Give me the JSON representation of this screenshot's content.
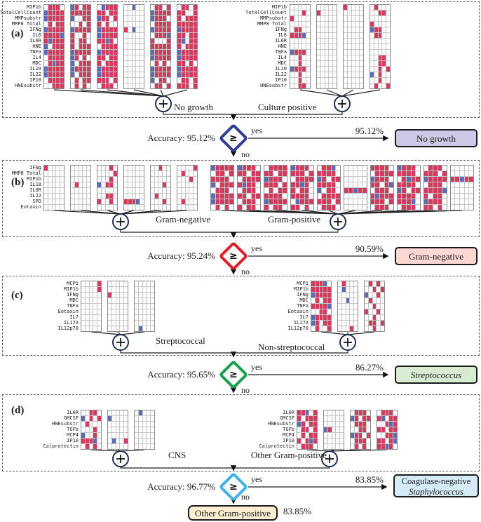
{
  "figure": {
    "labels": {
      "yes": "yes",
      "no": "no",
      "operator": "≥"
    },
    "colors": {
      "cell_positive_red": "#d23a5e",
      "cell_negative_blue": "#5b6cb4",
      "diamond_1": "#2f3d94",
      "diamond_2": "#de2026",
      "diamond_3": "#18a04f",
      "diamond_4": "#3fb3e3",
      "box_no_growth": "#ccc9e6",
      "box_gram_negative": "#fbd8d4",
      "box_streptococcus": "#d7ecd1",
      "box_coag_neg_staph": "#d5ecf7",
      "box_other_gram_positive": "#fbeed3"
    },
    "panels": [
      {
        "letter": "(a)",
        "rows": [
          "MIP1b",
          "TotalCellCount",
          "MMPsubstr",
          "MMP8 Total",
          "IFNg",
          "IL6",
          "IL6R",
          "HNE",
          "TNFa",
          "IL4",
          "MDC",
          "IL10",
          "IL22",
          "IP10",
          "HNEsubstr"
        ],
        "groups": [
          {
            "caption": "No growth",
            "blocks": [
              [
                "wrrrw",
                "brrrr",
                "brrrr",
                "wrwrr",
                "brrrr",
                "rrrrb",
                "rbrrr",
                "bwrrr",
                "brrrr",
                "wrrrr",
                "wrbrr",
                "brrrr",
                "brrrr",
                "wrrrr",
                "wwrrr"
              ],
              [
                "brwrr",
                "rrrrr",
                "bwwrr",
                "wwrwr",
                "brrrr",
                "rwwrw",
                "rwrrw",
                "rwrrr",
                "brrrr",
                "brwrw",
                "bwrrr",
                "brrrr",
                "bwrrr",
                "wrwrr",
                "wrwrw"
              ],
              [
                "wbrrr",
                "rrwrr",
                "brrwr",
                "rwrww",
                "brrrr",
                "brrrr",
                "rrbrw",
                "wrrrr",
                "brrrr",
                "rrwrr",
                "rwrrr",
                "brrrr",
                "brrrr",
                "rrrwr",
                "wrrrw"
              ],
              [
                "wwbww",
                "wwwww",
                "wwwww",
                "wwwww",
                "rwbww",
                "wwwww",
                "wwwww",
                "wwwww",
                "wwwww",
                "wwwww",
                "wwwww",
                "wwwww",
                "wwwww",
                "wwwww",
                "wwwww"
              ],
              [
                "wrrwr",
                "brrrr",
                "brrrw",
                "wrrrr",
                "brrrr",
                "wrrrb",
                "rwwwr",
                "rrrrr",
                "brrrr",
                "brrrr",
                "wrwrw",
                "brrrr",
                "brrrr",
                "bwrrw",
                "wrrwr"
              ],
              [
                "wrrwr",
                "rrwwr",
                "rwrrr",
                "rrrrr",
                "brrrr",
                "rrwrr",
                "rbwrr",
                "rwrrr",
                "brrrr",
                "brrrr",
                "rrwrw",
                "brrrr",
                "brrrr",
                "wrrwr",
                "rrrwr"
              ]
            ]
          },
          {
            "caption": "Culture positive",
            "blocks": [
              [
                "wwwww",
                "wwwrw",
                "rwwww",
                "wwwww",
                "wrrww",
                "rrrbw",
                "wwwww",
                "wwwww",
                "brrrw",
                "wwrww",
                "wwrww",
                "brrrw",
                "wwrww",
                "wwrww",
                "wwrrw"
              ],
              [
                "wwwww",
                "rwwww",
                "wwwww",
                "wwwww",
                "wwwww",
                "wwwww",
                "wwwww",
                "wwwww",
                "wwwww",
                "wwwww",
                "wwwww",
                "wwwww",
                "wwwww",
                "wwwww",
                "wwwww"
              ],
              [
                "rwwww",
                "wwwww",
                "wwwww",
                "wwwww",
                "wwwww",
                "wwwww",
                "wwwww",
                "wwwww",
                "wwwww",
                "wwwww",
                "wwwww",
                "wwwww",
                "wwwww",
                "wwwww",
                "wwwww"
              ],
              [
                "wrwww",
                "wwrrw",
                "wwwww",
                "rwwww",
                "brrww",
                "wrrww",
                "wwwww",
                "wwwww",
                "wwwww",
                "wwrrw",
                "wwrrw",
                "wwrwr",
                "bwrww",
                "wwrww",
                "wrwwr"
              ]
            ]
          }
        ]
      },
      {
        "letter": "(b)",
        "rows": [
          "IFNg",
          "MMP8 Total",
          "MIP1b",
          "IL18",
          "IL6R",
          "IL22",
          "SPD",
          "Eotaxin"
        ],
        "groups": [
          {
            "caption": "Gram-negative",
            "blocks": [
              [
                "rwwww",
                "wwwww",
                "wwwww",
                "wwwww",
                "wwwww",
                "wwwww",
                "wwwww",
                "wwwww"
              ],
              [
                "wwwww",
                "wwwww",
                "wwwww",
                "wrwww",
                "wwwww",
                "wwwww",
                "wwwww",
                "wwwww"
              ],
              [
                "wwwrw",
                "wwwwr",
                "wwwrw",
                "bwrrw",
                "wwwww",
                "wwrrw",
                "rwwrw",
                "wwwww"
              ],
              [
                "wwwww",
                "wwwww",
                "wwwww",
                "wwwww",
                "wwwww",
                "wwwww",
                "rrrbw",
                "wwwww"
              ],
              [
                "wwrww",
                "wwwww",
                "wwwww",
                "wwwrw",
                "wwwww",
                "wrwww",
                "wwwrw",
                "wwwww"
              ],
              [
                "wwwwr",
                "wrwww",
                "wwwrw",
                "wwwww",
                "wwwww",
                "wwwww",
                "wrwww",
                "wwwww"
              ]
            ]
          },
          {
            "caption": "Gram-positive",
            "blocks": [
              [
                "brrrr",
                "wrrwr",
                "rrrrw",
                "bwrrr",
                "wrrrw",
                "brrrr",
                "brrrr",
                "wrwrw"
              ],
              [
                "brrrw",
                "rrwrr",
                "wrrrr",
                "rbrrw",
                "wrrrw",
                "rrwrr",
                "wrrrw",
                "rwrrw"
              ],
              [
                "wrrrr",
                "rrwrr",
                "brrrw",
                "rrrwr",
                "wrwrr",
                "rrrrw",
                "brrrr",
                "rwrrw"
              ],
              [
                "brrrw",
                "rrrwr",
                "wrrrr",
                "rrbrw",
                "rwrrw",
                "rrrrw",
                "wbrrr",
                "rrwrw"
              ],
              [
                "wrrbw",
                "rrrrw",
                "brwrr",
                "rrrrw",
                "bwrrw",
                "wrrrr",
                "rrrwr",
                "wrrrw"
              ],
              [
                "wwwww",
                "wwwww",
                "wwwww",
                "wwwww",
                "rrbrr",
                "wwwww",
                "wwwww",
                "wwwww"
              ],
              [
                "rrrrw",
                "wrrrr",
                "brrrw",
                "rrwrb",
                "wrrrw",
                "rbrrr",
                "rrrwr",
                "wrrrw"
              ],
              [
                "brrrw",
                "rrrrw",
                "wrbrr",
                "rrrrw",
                "brwrr",
                "rrrrw",
                "rrrbw",
                "wrrrw"
              ],
              [
                "wrrrw",
                "rrrwr",
                "brrrr",
                "wrrrw",
                "rrrrb",
                "rwrrw",
                "brrrw",
                "rrwrw"
              ],
              [
                "wwwww",
                "wwwww",
                "rrbrr",
                "wwwww",
                "wwwww",
                "wwwww",
                "wwwww",
                "wwwww"
              ]
            ]
          }
        ]
      },
      {
        "letter": "(c)",
        "rows": [
          "MCP1",
          "MIP1b",
          "IFNg",
          "MDC",
          "TNFa",
          "Eotaxin",
          "IL7",
          "IL17A",
          "IL12p70"
        ],
        "groups": [
          {
            "caption": "Streptococcal",
            "blocks": [
              [
                "wwwwr",
                "wwwwr",
                "wwwww",
                "wwwww",
                "wwwww",
                "wwwww",
                "wwwww",
                "wwwww",
                "wwwww"
              ],
              [
                "wwwww",
                "wwwww",
                "rwwww",
                "wwwww",
                "wwwww",
                "wwwww",
                "wwwww",
                "wwwww",
                "wwwww"
              ],
              [
                "wwwww",
                "wwwww",
                "wwwww",
                "wwwww",
                "wwwww",
                "wwwww",
                "wwwww",
                "wwwww",
                "wbwww"
              ]
            ]
          },
          {
            "caption": "Non-streptococcal",
            "blocks": [
              [
                "rrrbw",
                "rrrrr",
                "brrrr",
                "wrwrr",
                "rrrrb",
                "wwrrw",
                "brrrr",
                "brwrr",
                "wrwwr"
              ],
              [
                "wrwww",
                "wbwww",
                "wwwww",
                "wwbww",
                "wwwww",
                "wwwww",
                "wwwww",
                "wwwww",
                "wwwrw"
              ],
              [
                "wrwrw",
                "wwrwr",
                "bwwrw",
                "wrwww",
                "wwrww",
                "rwwrw",
                "wwrww",
                "wrrwr",
                "wwrww"
              ]
            ]
          }
        ]
      },
      {
        "letter": "(d)",
        "rows": [
          "IL6R",
          "GMCSF",
          "HNEsubstr",
          "TGFb",
          "MCP4",
          "IP10",
          "Calprotectin"
        ],
        "groups": [
          {
            "caption": "CNS",
            "blocks": [
              [
                "wwrrw",
                "bwrwr",
                "wrwww",
                "wwwrw",
                "bwwrw",
                "rrrbw",
                "wrwrw"
              ],
              [
                "wwwww",
                "bwwww",
                "wwwww",
                "wwwww",
                "wwwww",
                "wbwwr",
                "wwwww"
              ],
              [
                "wbwww",
                "wwwww",
                "wwwww",
                "wwwww",
                "wwwww",
                "wwwww",
                "wwwww"
              ]
            ]
          },
          {
            "caption": "Other Gram-positive",
            "blocks": [
              [
                "rrbwr",
                "rwrrr",
                "brwrr",
                "wrrwr",
                "wrwrr",
                "rwrbr",
                "wrrrw"
              ],
              [
                "wwwww",
                "wwwww",
                "wwwww",
                "brwww",
                "wwwww",
                "wwwww",
                "wwwww"
              ],
              [
                "wrrrw",
                "brwrr",
                "wrrrw",
                "wwrrw",
                "brrwr",
                "wrrrw",
                "wrwrw"
              ],
              [
                "wrrrw",
                "rbwrr",
                "wwrbr",
                "rrwrr",
                "wwrrb",
                "rrwrb",
                "rrbrw"
              ]
            ]
          }
        ]
      }
    ],
    "decisions": [
      {
        "accuracy": "Accuracy: 95.12%",
        "percent": "95.12%",
        "result": [
          "No growth"
        ]
      },
      {
        "accuracy": "Accuracy: 95.24%",
        "percent": "90.59%",
        "result": [
          "Gram-negative"
        ]
      },
      {
        "accuracy": "Accuracy: 95.65%",
        "percent": "86.27%",
        "result": [
          "Streptococcus"
        ]
      },
      {
        "accuracy": "Accuracy: 96.77%",
        "percent": "83.85%",
        "result": [
          "Coagulase-negative",
          "Staphylococcus"
        ]
      }
    ],
    "final_no": {
      "label": "Other Gram-positive",
      "percent": "83.85%"
    }
  }
}
